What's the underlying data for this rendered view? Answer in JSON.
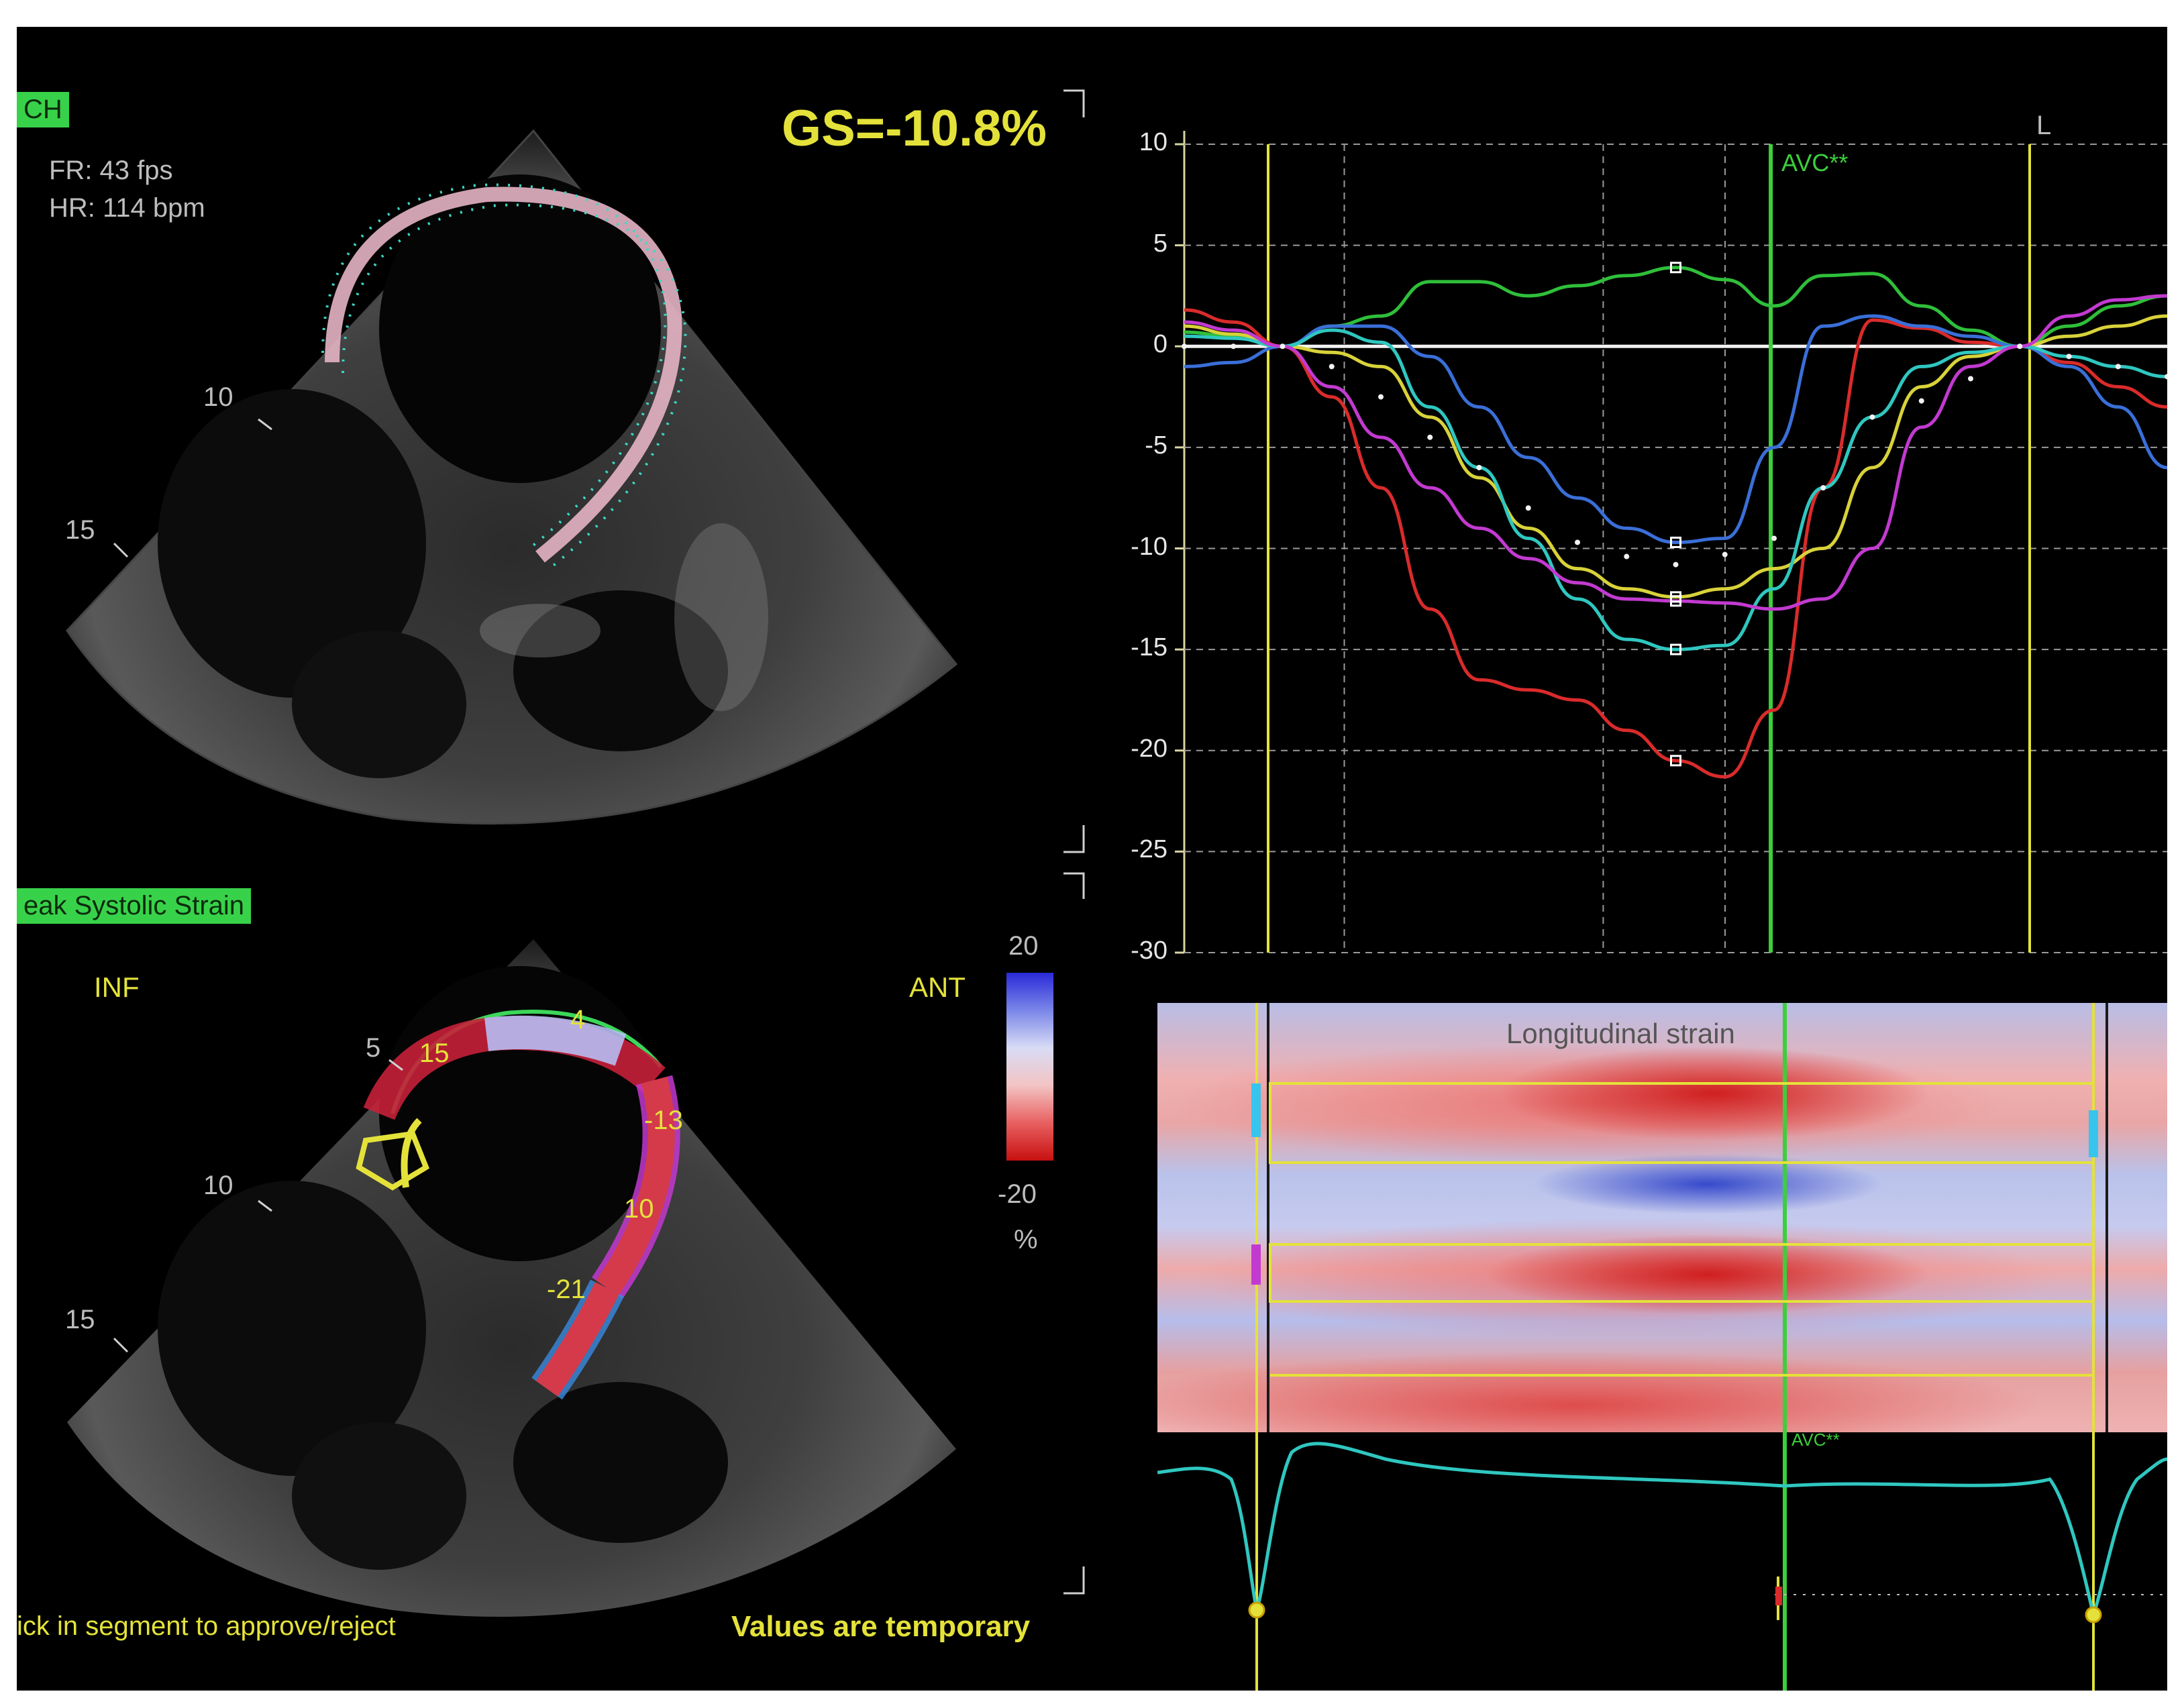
{
  "top_view": {
    "view_tag": "CH",
    "frame_rate": "FR: 43 fps",
    "heart_rate": "HR: 114 bpm",
    "gs_value": "GS=-10.8%",
    "depth_labels": [
      "10",
      "15"
    ]
  },
  "bottom_view": {
    "mode_tag": "eak Systolic Strain",
    "inf_label": "INF",
    "ant_label": "ANT",
    "depth_labels": [
      "5",
      "10",
      "15"
    ],
    "segment_values": [
      "15",
      "4",
      "-13",
      "10",
      "-21"
    ],
    "colorbar": {
      "max": "20",
      "min": "-20",
      "unit": "%"
    },
    "footer_hint": "ick in segment to approve/reject",
    "footer_status": "Values are temporary"
  },
  "strain_chart": {
    "avc_label": "AVC**",
    "corner_label": "L",
    "y_ticks": [
      "10",
      "5",
      "0",
      "-5",
      "-10",
      "-15",
      "-20",
      "-25",
      "-30"
    ]
  },
  "strain_map": {
    "title": "Longitudinal strain",
    "avc_label": "AVC**"
  },
  "colors": {
    "accent_yellow": "#e4e23a",
    "tag_green": "#38d24a",
    "avc_green": "#3ccf3c",
    "ecg_trace": "#2fc7c0"
  },
  "chart_data": {
    "type": "line",
    "ylim": [
      -30,
      10
    ],
    "y_ticks": [
      10,
      5,
      0,
      -5,
      -10,
      -15,
      -20,
      -25,
      -30
    ],
    "grid": true,
    "x": [
      0.0,
      0.05,
      0.1,
      0.15,
      0.2,
      0.25,
      0.3,
      0.35,
      0.4,
      0.45,
      0.5,
      0.55,
      0.6,
      0.65,
      0.7,
      0.75,
      0.8,
      0.85,
      0.9,
      0.95,
      1.0
    ],
    "series": [
      {
        "color": "#d92b2b",
        "values": [
          1.8,
          1.2,
          0,
          -2.5,
          -7,
          -13,
          -16.5,
          -17,
          -17.5,
          -19,
          -20.5,
          -21.3,
          -18,
          -7,
          1.3,
          0.9,
          0.2,
          0,
          -0.8,
          -2,
          -3
        ]
      },
      {
        "color": "#2fbf3a",
        "values": [
          0.7,
          0.5,
          0,
          1,
          1.5,
          3.2,
          3.2,
          2.5,
          3,
          3.5,
          3.9,
          3.3,
          2,
          3.5,
          3.6,
          2,
          0.8,
          0,
          1,
          2,
          2.5
        ]
      },
      {
        "color": "#3a6fd8",
        "values": [
          -1,
          -0.8,
          0,
          1,
          1,
          -0.5,
          -3,
          -5.5,
          -7.5,
          -9,
          -9.7,
          -9.5,
          -5,
          1,
          1.5,
          1,
          0.5,
          0,
          -1,
          -3,
          -6
        ]
      },
      {
        "color": "#d8d23a",
        "values": [
          1,
          0.6,
          0,
          -0.3,
          -1,
          -3.5,
          -6.5,
          -9,
          -11,
          -12,
          -12.4,
          -12,
          -11,
          -10,
          -6,
          -2,
          -0.5,
          0,
          0.5,
          1,
          1.5
        ]
      },
      {
        "color": "#2fc7c0",
        "values": [
          0.5,
          0.4,
          0,
          0.8,
          0.2,
          -3,
          -6,
          -9.5,
          -12.5,
          -14.5,
          -15,
          -14.8,
          -12,
          -7,
          -3.5,
          -1,
          -0.3,
          0,
          -0.5,
          -1,
          -1.5
        ]
      },
      {
        "color": "#c23ad0",
        "values": [
          1.2,
          0.8,
          0,
          -2,
          -4.5,
          -7,
          -9,
          -10.5,
          -11.7,
          -12.5,
          -12.6,
          -12.7,
          -13,
          -12.5,
          -10,
          -4,
          -1,
          0,
          1.5,
          2.3,
          2.5
        ]
      },
      {
        "color": "#f2f2f2",
        "values": [
          0,
          0,
          0,
          -1,
          -2.5,
          -4.5,
          -6,
          -8,
          -9.7,
          -10.4,
          -10.8,
          -10.3,
          -9.5,
          -7,
          -3.5,
          -2.7,
          -1.6,
          0,
          -0.5,
          -1,
          -1.5
        ]
      }
    ]
  }
}
